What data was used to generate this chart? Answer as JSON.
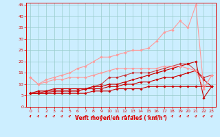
{
  "bg_color": "#cceeff",
  "grid_color": "#99cccc",
  "xlabel": "Vent moyen/en rafales ( km/h )",
  "xlabel_color": "#dd0000",
  "tick_color": "#dd0000",
  "spine_color": "#dd0000",
  "xlim": [
    -0.5,
    23.5
  ],
  "ylim": [
    0,
    46
  ],
  "yticks": [
    0,
    5,
    10,
    15,
    20,
    25,
    30,
    35,
    40,
    45
  ],
  "xticks": [
    0,
    1,
    2,
    3,
    4,
    5,
    6,
    7,
    8,
    9,
    10,
    11,
    12,
    13,
    14,
    15,
    16,
    17,
    18,
    19,
    20,
    21,
    22,
    23
  ],
  "lines": [
    {
      "x": [
        0,
        1,
        2,
        3,
        4,
        5,
        6,
        7,
        8,
        9,
        10,
        11,
        12,
        13,
        14,
        15,
        16,
        17,
        18,
        19,
        20,
        21,
        22,
        23
      ],
      "y": [
        6,
        6,
        6,
        6,
        6,
        6,
        6,
        6,
        7,
        7,
        7,
        8,
        8,
        8,
        8,
        9,
        9,
        9,
        9,
        9,
        9,
        9,
        9,
        9
      ],
      "color": "#cc0000",
      "lw": 0.8,
      "marker": "D",
      "ms": 1.8,
      "alpha": 1.0
    },
    {
      "x": [
        0,
        1,
        2,
        3,
        4,
        5,
        6,
        7,
        8,
        9,
        10,
        11,
        12,
        13,
        14,
        15,
        16,
        17,
        18,
        19,
        20,
        21,
        22,
        23
      ],
      "y": [
        6,
        6,
        7,
        7,
        7,
        7,
        7,
        8,
        8,
        8,
        9,
        9,
        10,
        10,
        11,
        11,
        12,
        13,
        13,
        14,
        15,
        16,
        12,
        9
      ],
      "color": "#cc0000",
      "lw": 0.8,
      "marker": "D",
      "ms": 1.8,
      "alpha": 1.0
    },
    {
      "x": [
        0,
        1,
        2,
        3,
        4,
        5,
        6,
        7,
        8,
        9,
        10,
        11,
        12,
        13,
        14,
        15,
        16,
        17,
        18,
        19,
        20,
        21,
        22,
        23
      ],
      "y": [
        6,
        7,
        7,
        8,
        8,
        8,
        8,
        8,
        9,
        9,
        10,
        10,
        11,
        12,
        13,
        14,
        15,
        16,
        17,
        18,
        19,
        20,
        4,
        9
      ],
      "color": "#cc0000",
      "lw": 0.8,
      "marker": "D",
      "ms": 1.8,
      "alpha": 1.0
    },
    {
      "x": [
        0,
        1,
        2,
        3,
        4,
        5,
        6,
        7,
        8,
        9,
        10,
        11,
        12,
        13,
        14,
        15,
        16,
        17,
        18,
        19,
        20,
        21,
        22,
        23
      ],
      "y": [
        6,
        6,
        6,
        7,
        7,
        7,
        7,
        8,
        9,
        10,
        13,
        13,
        14,
        15,
        15,
        15,
        16,
        17,
        18,
        19,
        19,
        16,
        13,
        14
      ],
      "color": "#cc0000",
      "lw": 0.8,
      "marker": "D",
      "ms": 1.8,
      "alpha": 0.7
    },
    {
      "x": [
        0,
        1,
        2,
        3,
        4,
        5,
        6,
        7,
        8,
        9,
        10,
        11,
        12,
        13,
        14,
        15,
        16,
        17,
        18,
        19,
        20,
        21,
        22,
        23
      ],
      "y": [
        13,
        10,
        11,
        12,
        12,
        13,
        13,
        13,
        14,
        15,
        16,
        17,
        17,
        17,
        17,
        17,
        17,
        18,
        18,
        18,
        17,
        16,
        8,
        14
      ],
      "color": "#ff9999",
      "lw": 0.8,
      "marker": "D",
      "ms": 1.8,
      "alpha": 1.0
    },
    {
      "x": [
        0,
        1,
        2,
        3,
        4,
        5,
        6,
        7,
        8,
        9,
        10,
        11,
        12,
        13,
        14,
        15,
        16,
        17,
        18,
        19,
        20,
        21,
        22,
        23
      ],
      "y": [
        13,
        10,
        12,
        13,
        14,
        15,
        17,
        18,
        20,
        22,
        22,
        23,
        24,
        25,
        25,
        26,
        29,
        33,
        34,
        38,
        35,
        45,
        8,
        14
      ],
      "color": "#ff9999",
      "lw": 0.8,
      "marker": "D",
      "ms": 1.8,
      "alpha": 1.0
    }
  ]
}
